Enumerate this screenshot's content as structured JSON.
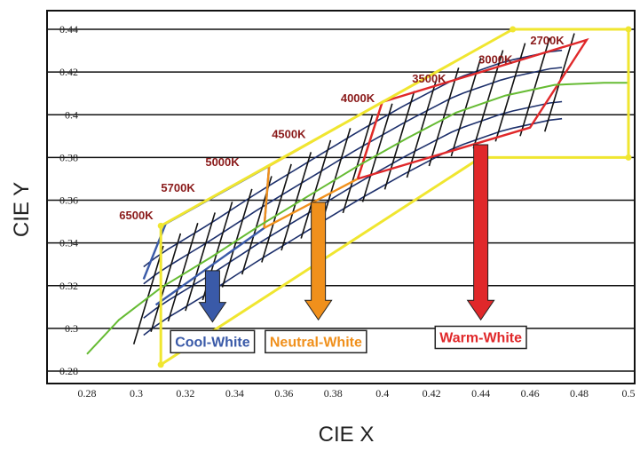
{
  "chart_data": {
    "type": "line",
    "title": "",
    "xlabel": "CIE X",
    "ylabel": "CIE Y",
    "xlim": [
      0.28,
      0.5
    ],
    "ylim": [
      0.28,
      0.44
    ],
    "x_ticks": [
      "0.28",
      "0.3",
      "0.32",
      "0.34",
      "0.36",
      "0.38",
      "0.4",
      "0.42",
      "0.44",
      "0.46",
      "0.48",
      "0.5"
    ],
    "y_ticks": [
      "0.28",
      "0.3",
      "0.32",
      "0.34",
      "0.36",
      "0.38",
      "0.4",
      "0.42",
      "0.44"
    ],
    "grid": "horizontal",
    "blackbody_locus": {
      "color": "#66bb33",
      "x": [
        0.28,
        0.293,
        0.31,
        0.33,
        0.35,
        0.37,
        0.39,
        0.41,
        0.43,
        0.45,
        0.47,
        0.49,
        0.5
      ],
      "y": [
        0.288,
        0.304,
        0.319,
        0.333,
        0.348,
        0.362,
        0.376,
        0.389,
        0.401,
        0.409,
        0.414,
        0.415,
        0.415
      ]
    },
    "cct_labels": [
      {
        "label": "6500K",
        "x": 0.3,
        "y": 0.351
      },
      {
        "label": "5700K",
        "x": 0.317,
        "y": 0.364
      },
      {
        "label": "5000K",
        "x": 0.335,
        "y": 0.376
      },
      {
        "label": "4500K",
        "x": 0.362,
        "y": 0.389
      },
      {
        "label": "4000K",
        "x": 0.39,
        "y": 0.406
      },
      {
        "label": "3500K",
        "x": 0.419,
        "y": 0.415
      },
      {
        "label": "3000K",
        "x": 0.446,
        "y": 0.424
      },
      {
        "label": "2700K",
        "x": 0.467,
        "y": 0.433
      }
    ],
    "zones": [
      {
        "name": "Cool-White",
        "color": "#3a5aa8",
        "outline": [
          [
            0.303,
            0.323
          ],
          [
            0.312,
            0.349
          ],
          [
            0.354,
            0.376
          ],
          [
            0.352,
            0.347
          ],
          [
            0.308,
            0.311
          ]
        ],
        "arrow": {
          "x": 0.331,
          "y_from": 0.327,
          "y_to": 0.303
        },
        "label_pos": {
          "x": 0.331,
          "y": 0.294
        }
      },
      {
        "name": "Neutral-White",
        "color": "#f0901c",
        "outline": [
          [
            0.352,
            0.347
          ],
          [
            0.354,
            0.376
          ],
          [
            0.4,
            0.406
          ],
          [
            0.39,
            0.37
          ],
          [
            0.352,
            0.347
          ]
        ],
        "arrow": {
          "x": 0.374,
          "y_from": 0.359,
          "y_to": 0.304
        },
        "label_pos": {
          "x": 0.373,
          "y": 0.294
        }
      },
      {
        "name": "Warm-White",
        "color": "#e0282a",
        "outline": [
          [
            0.39,
            0.37
          ],
          [
            0.4,
            0.406
          ],
          [
            0.483,
            0.435
          ],
          [
            0.46,
            0.394
          ],
          [
            0.39,
            0.37
          ]
        ],
        "arrow": {
          "x": 0.44,
          "y_from": 0.386,
          "y_to": 0.304
        },
        "label_pos": {
          "x": 0.44,
          "y": 0.296
        }
      }
    ],
    "envelope": {
      "color": "#f0e630",
      "points": [
        [
          0.31,
          0.348
        ],
        [
          0.453,
          0.44
        ],
        [
          0.5,
          0.44
        ],
        [
          0.5,
          0.38
        ],
        [
          0.44,
          0.38
        ],
        [
          0.31,
          0.283
        ],
        [
          0.31,
          0.348
        ]
      ]
    }
  }
}
